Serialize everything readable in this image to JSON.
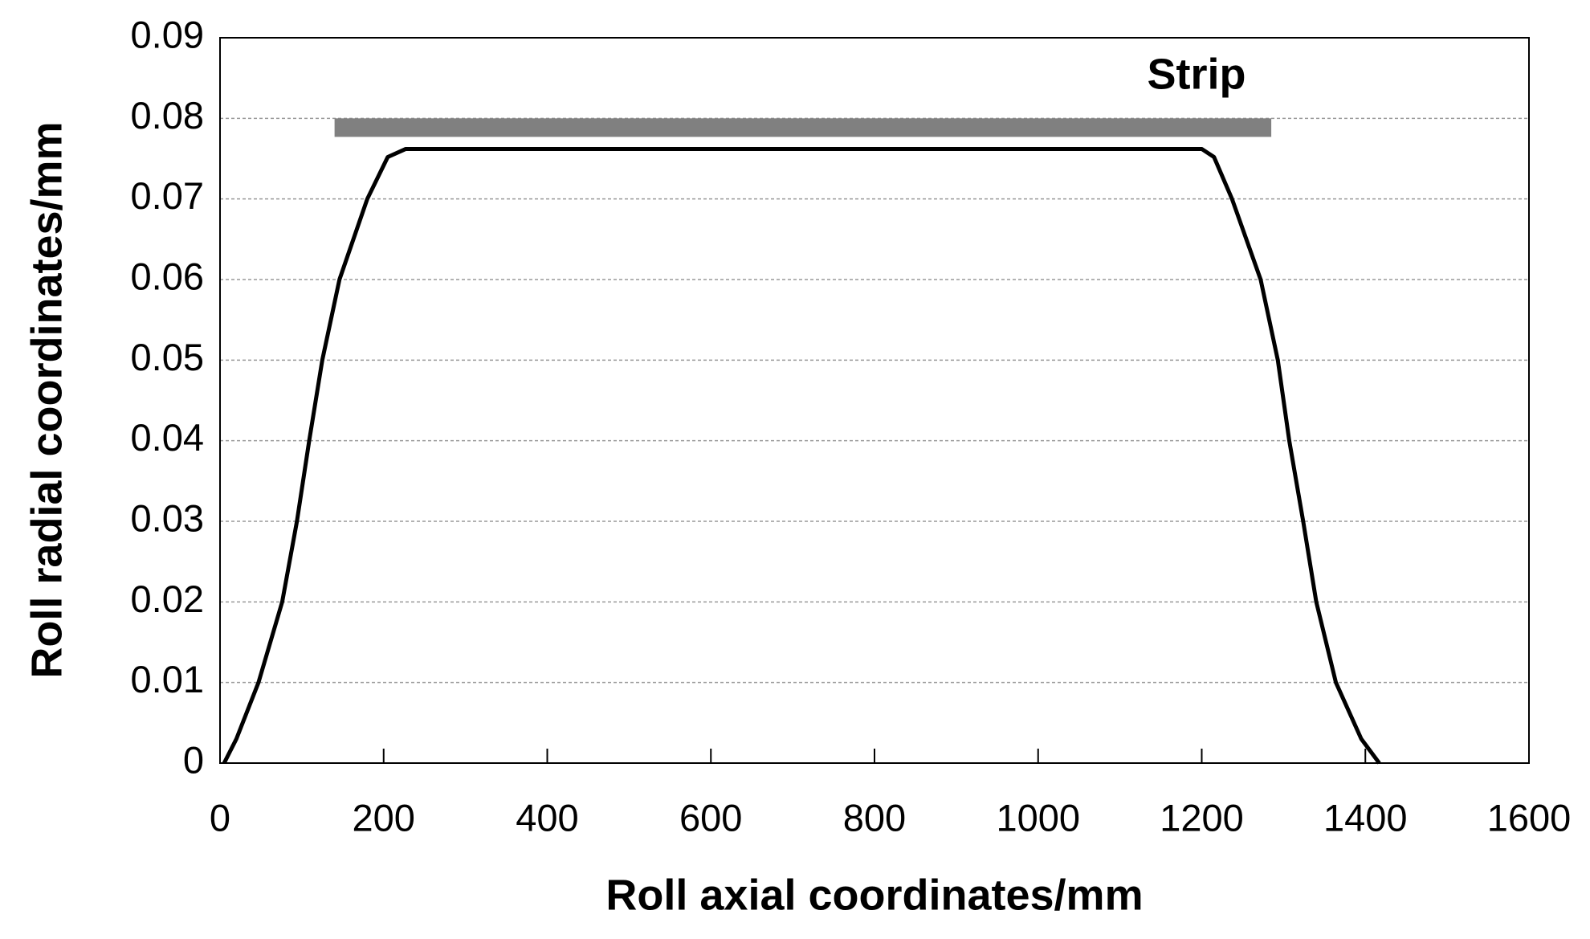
{
  "chart_data": {
    "type": "line",
    "xlabel": "Roll axial coordinates/mm",
    "ylabel": "Roll radial coordinates/mm",
    "xlim": [
      0,
      1600
    ],
    "xticks": [
      0,
      200,
      400,
      600,
      800,
      1000,
      1200,
      1400,
      1600
    ],
    "ylim": [
      0,
      0.09
    ],
    "yticks": [
      0,
      0.01,
      0.02,
      0.03,
      0.04,
      0.05,
      0.06,
      0.07,
      0.08,
      0.09
    ],
    "grid": true,
    "series": [
      {
        "color": "#000000",
        "x": [
          5,
          20,
          47,
          76,
          94,
          109,
          125,
          146,
          180,
          205,
          227,
          1200,
          1215,
          1237,
          1272,
          1293,
          1307,
          1324,
          1340,
          1364,
          1395,
          1417
        ],
        "values": [
          0,
          0.003,
          0.01,
          0.02,
          0.03,
          0.04,
          0.05,
          0.06,
          0.07,
          0.0752,
          0.0762,
          0.0762,
          0.0752,
          0.07,
          0.06,
          0.05,
          0.04,
          0.03,
          0.02,
          0.01,
          0.003,
          0
        ]
      }
    ],
    "strip": {
      "label": "Strip",
      "color": "#808080",
      "x": [
        140,
        1285
      ],
      "y": [
        0.0777,
        0.08
      ]
    }
  }
}
